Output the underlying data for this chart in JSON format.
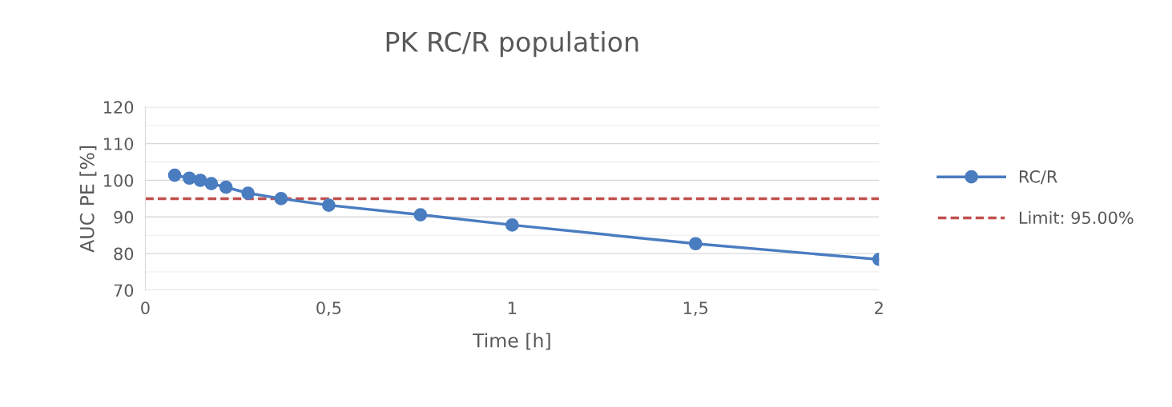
{
  "chart_data": {
    "type": "line",
    "title": "PK RC/R population",
    "xlabel": "Time [h]",
    "ylabel": "AUC PE [%]",
    "x": [
      0.08,
      0.12,
      0.15,
      0.18,
      0.22,
      0.28,
      0.37,
      0.5,
      0.75,
      1,
      1.5,
      2
    ],
    "series": [
      {
        "name": "RC/R",
        "color": "#4a7cc0",
        "values": [
          101.4,
          100.6,
          100,
          99.1,
          98.1,
          96.5,
          95,
          93.2,
          90.6,
          87.8,
          82.7,
          78.4
        ]
      }
    ],
    "ref_lines": [
      {
        "axis": "y",
        "value": 95,
        "label": "Limit: 95.00%",
        "color": "#c0504d",
        "line_style": "dashed"
      }
    ],
    "xlim": [
      0,
      2
    ],
    "xticks": [
      0,
      {
        "value": 0.5,
        "label": "0,5"
      },
      1,
      {
        "value": 1.5,
        "label": "1,5"
      },
      2
    ],
    "ylim": [
      70,
      120
    ],
    "yticks": [
      70,
      80,
      90,
      100,
      110,
      120
    ],
    "grid": "y",
    "legend": "right",
    "marker": "circle",
    "line_style": "solid"
  }
}
